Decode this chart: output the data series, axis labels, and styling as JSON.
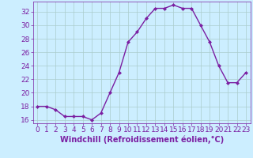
{
  "x": [
    0,
    1,
    2,
    3,
    4,
    5,
    6,
    7,
    8,
    9,
    10,
    11,
    12,
    13,
    14,
    15,
    16,
    17,
    18,
    19,
    20,
    21,
    22,
    23
  ],
  "y": [
    18,
    18,
    17.5,
    16.5,
    16.5,
    16.5,
    16,
    17,
    20,
    23,
    27.5,
    29,
    31,
    32.5,
    32.5,
    33,
    32.5,
    32.5,
    30,
    27.5,
    24,
    21.5,
    21.5,
    23
  ],
  "line_color": "#7b1fa2",
  "marker_color": "#7b1fa2",
  "bg_color": "#cceeff",
  "grid_color": "#aacccc",
  "xlabel": "Windchill (Refroidissement éolien,°C)",
  "ylim": [
    15.5,
    33.5
  ],
  "xlim": [
    -0.5,
    23.5
  ],
  "yticks": [
    16,
    18,
    20,
    22,
    24,
    26,
    28,
    30,
    32
  ],
  "xticks": [
    0,
    1,
    2,
    3,
    4,
    5,
    6,
    7,
    8,
    9,
    10,
    11,
    12,
    13,
    14,
    15,
    16,
    17,
    18,
    19,
    20,
    21,
    22,
    23
  ],
  "xlabel_color": "#7b1fa2",
  "tick_color": "#7b1fa2",
  "font_size": 6.5,
  "xlabel_fontsize": 7,
  "linewidth": 1.0,
  "markersize": 2.0
}
